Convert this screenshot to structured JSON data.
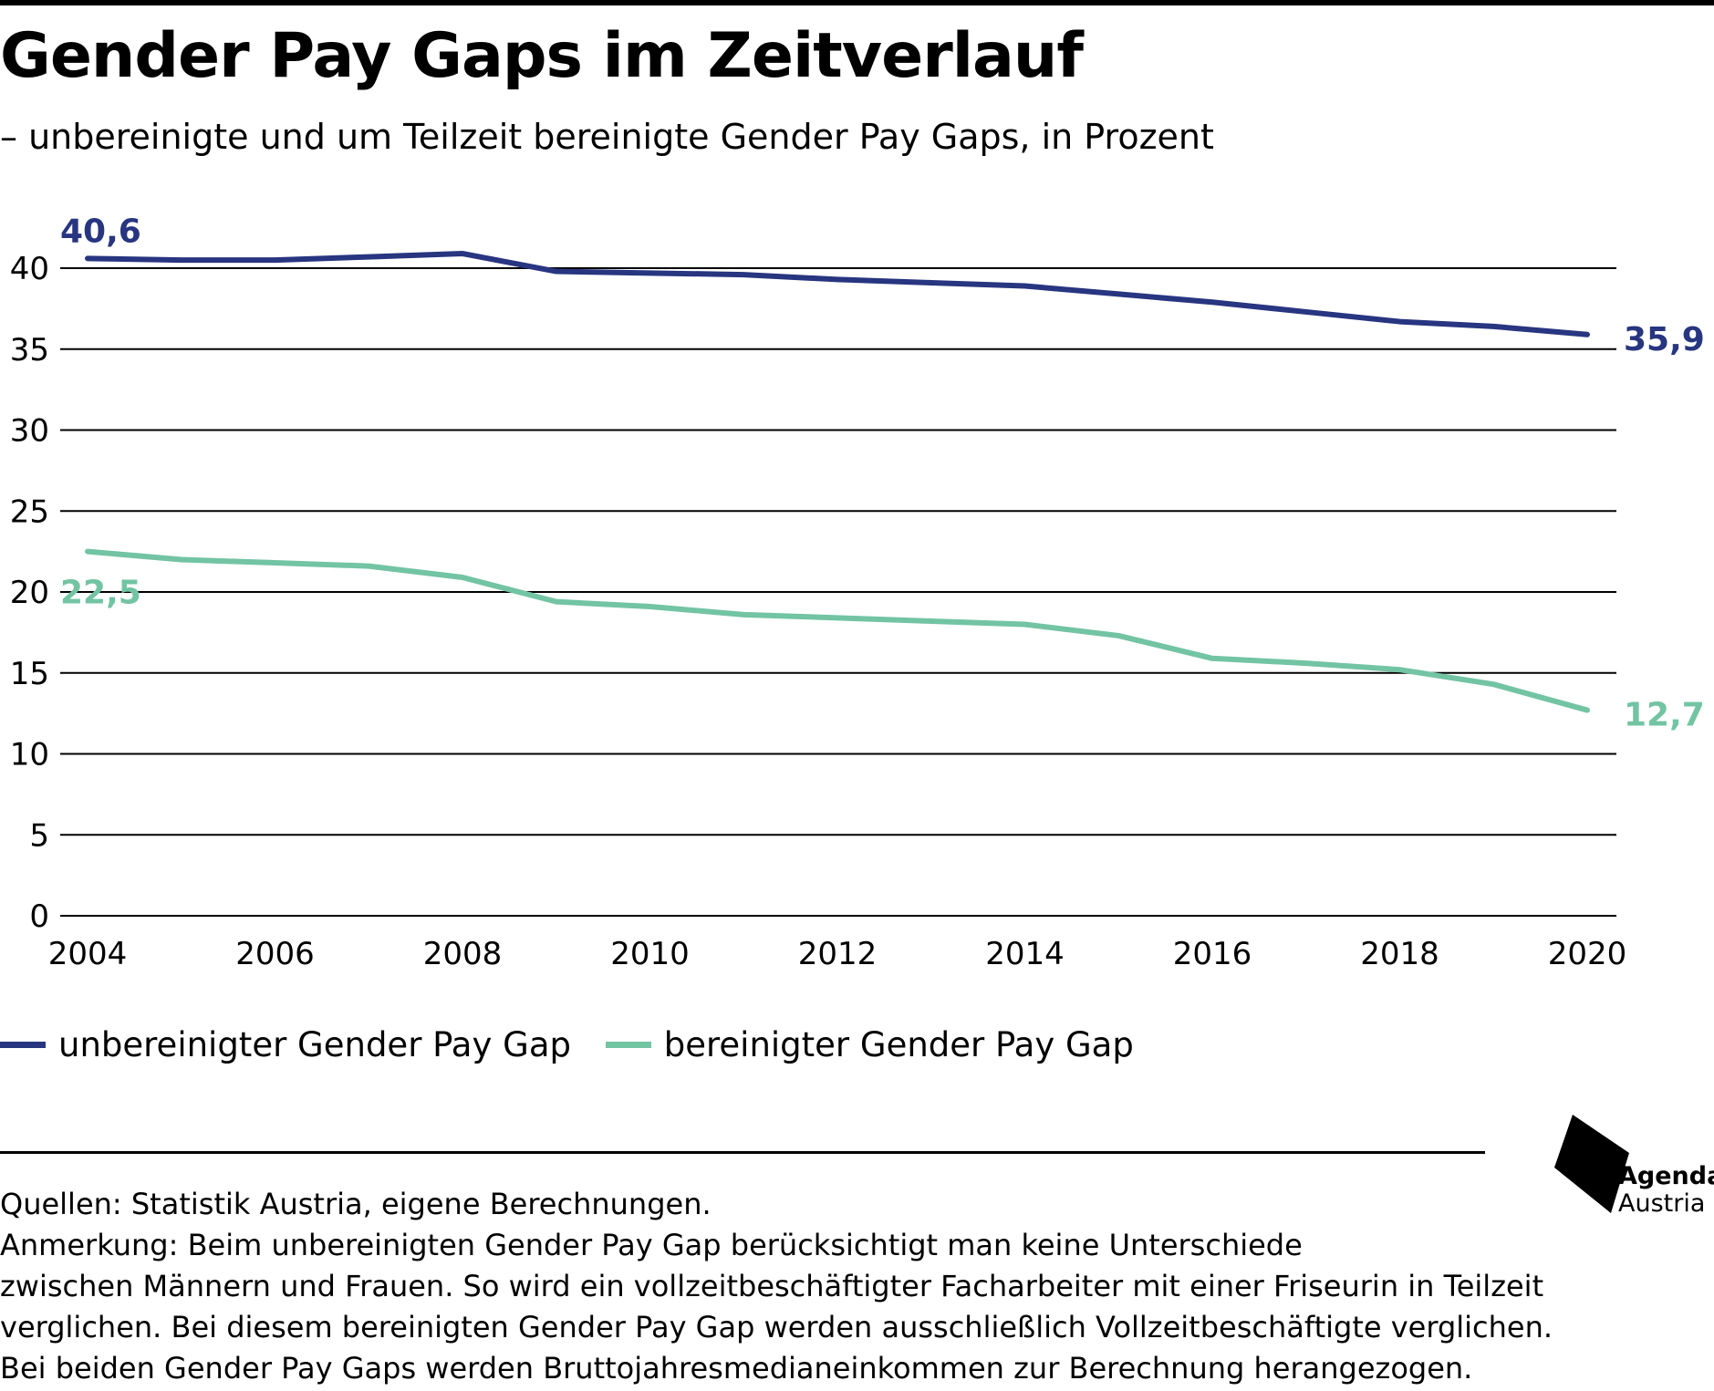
{
  "title": "Gender Pay Gaps im Zeitverlauf",
  "subtitle": "– unbereinigte und um Teilzeit bereinigte Gender Pay Gaps, in Prozent",
  "colors": {
    "unadjusted": "#283580",
    "adjusted": "#72c4a3"
  },
  "chart_data": {
    "type": "line",
    "x": [
      2004,
      2005,
      2006,
      2007,
      2008,
      2009,
      2010,
      2011,
      2012,
      2013,
      2014,
      2015,
      2016,
      2017,
      2018,
      2019,
      2020
    ],
    "xticks": [
      "2004",
      "2006",
      "2008",
      "2010",
      "2012",
      "2014",
      "2016",
      "2018",
      "2020"
    ],
    "yticks": [
      "0",
      "5",
      "10",
      "15",
      "20",
      "25",
      "30",
      "35",
      "40"
    ],
    "xlim": [
      2004,
      2020
    ],
    "ylim": [
      0,
      40
    ],
    "grid": true,
    "legend_position": "bottom-left",
    "series": [
      {
        "name": "unbereinigter Gender Pay Gap",
        "values": [
          40.6,
          40.5,
          40.5,
          40.7,
          40.9,
          39.8,
          39.7,
          39.6,
          39.3,
          39.1,
          38.9,
          38.4,
          37.9,
          37.3,
          36.7,
          36.4,
          35.9
        ],
        "start_label": "40,6",
        "end_label": "35,9"
      },
      {
        "name": "bereinigter Gender Pay Gap",
        "values": [
          22.5,
          22.0,
          21.8,
          21.6,
          20.9,
          19.4,
          19.1,
          18.6,
          18.4,
          18.2,
          18.0,
          17.3,
          15.9,
          15.6,
          15.2,
          14.3,
          12.7
        ],
        "start_label": "22,5",
        "end_label": "12,7"
      }
    ]
  },
  "logo": {
    "line1": "Agenda",
    "line2": "Austria"
  },
  "notes": {
    "sources": "Quellen: Statistik Austria, eigene Berechnungen.",
    "remark_lines": [
      "Anmerkung: Beim unbereinigten Gender Pay Gap berücksichtigt man keine Unterschiede",
      "zwischen Männern und Frauen. So wird ein vollzeitbeschäftigter Facharbeiter mit einer Friseurin in Teilzeit",
      "verglichen. Bei diesem bereinigten Gender Pay Gap werden ausschließlich Vollzeitbeschäftigte verglichen.",
      "Bei beiden Gender Pay Gaps werden Bruttojahresmedianeinkommen zur Berechnung herangezogen."
    ]
  }
}
